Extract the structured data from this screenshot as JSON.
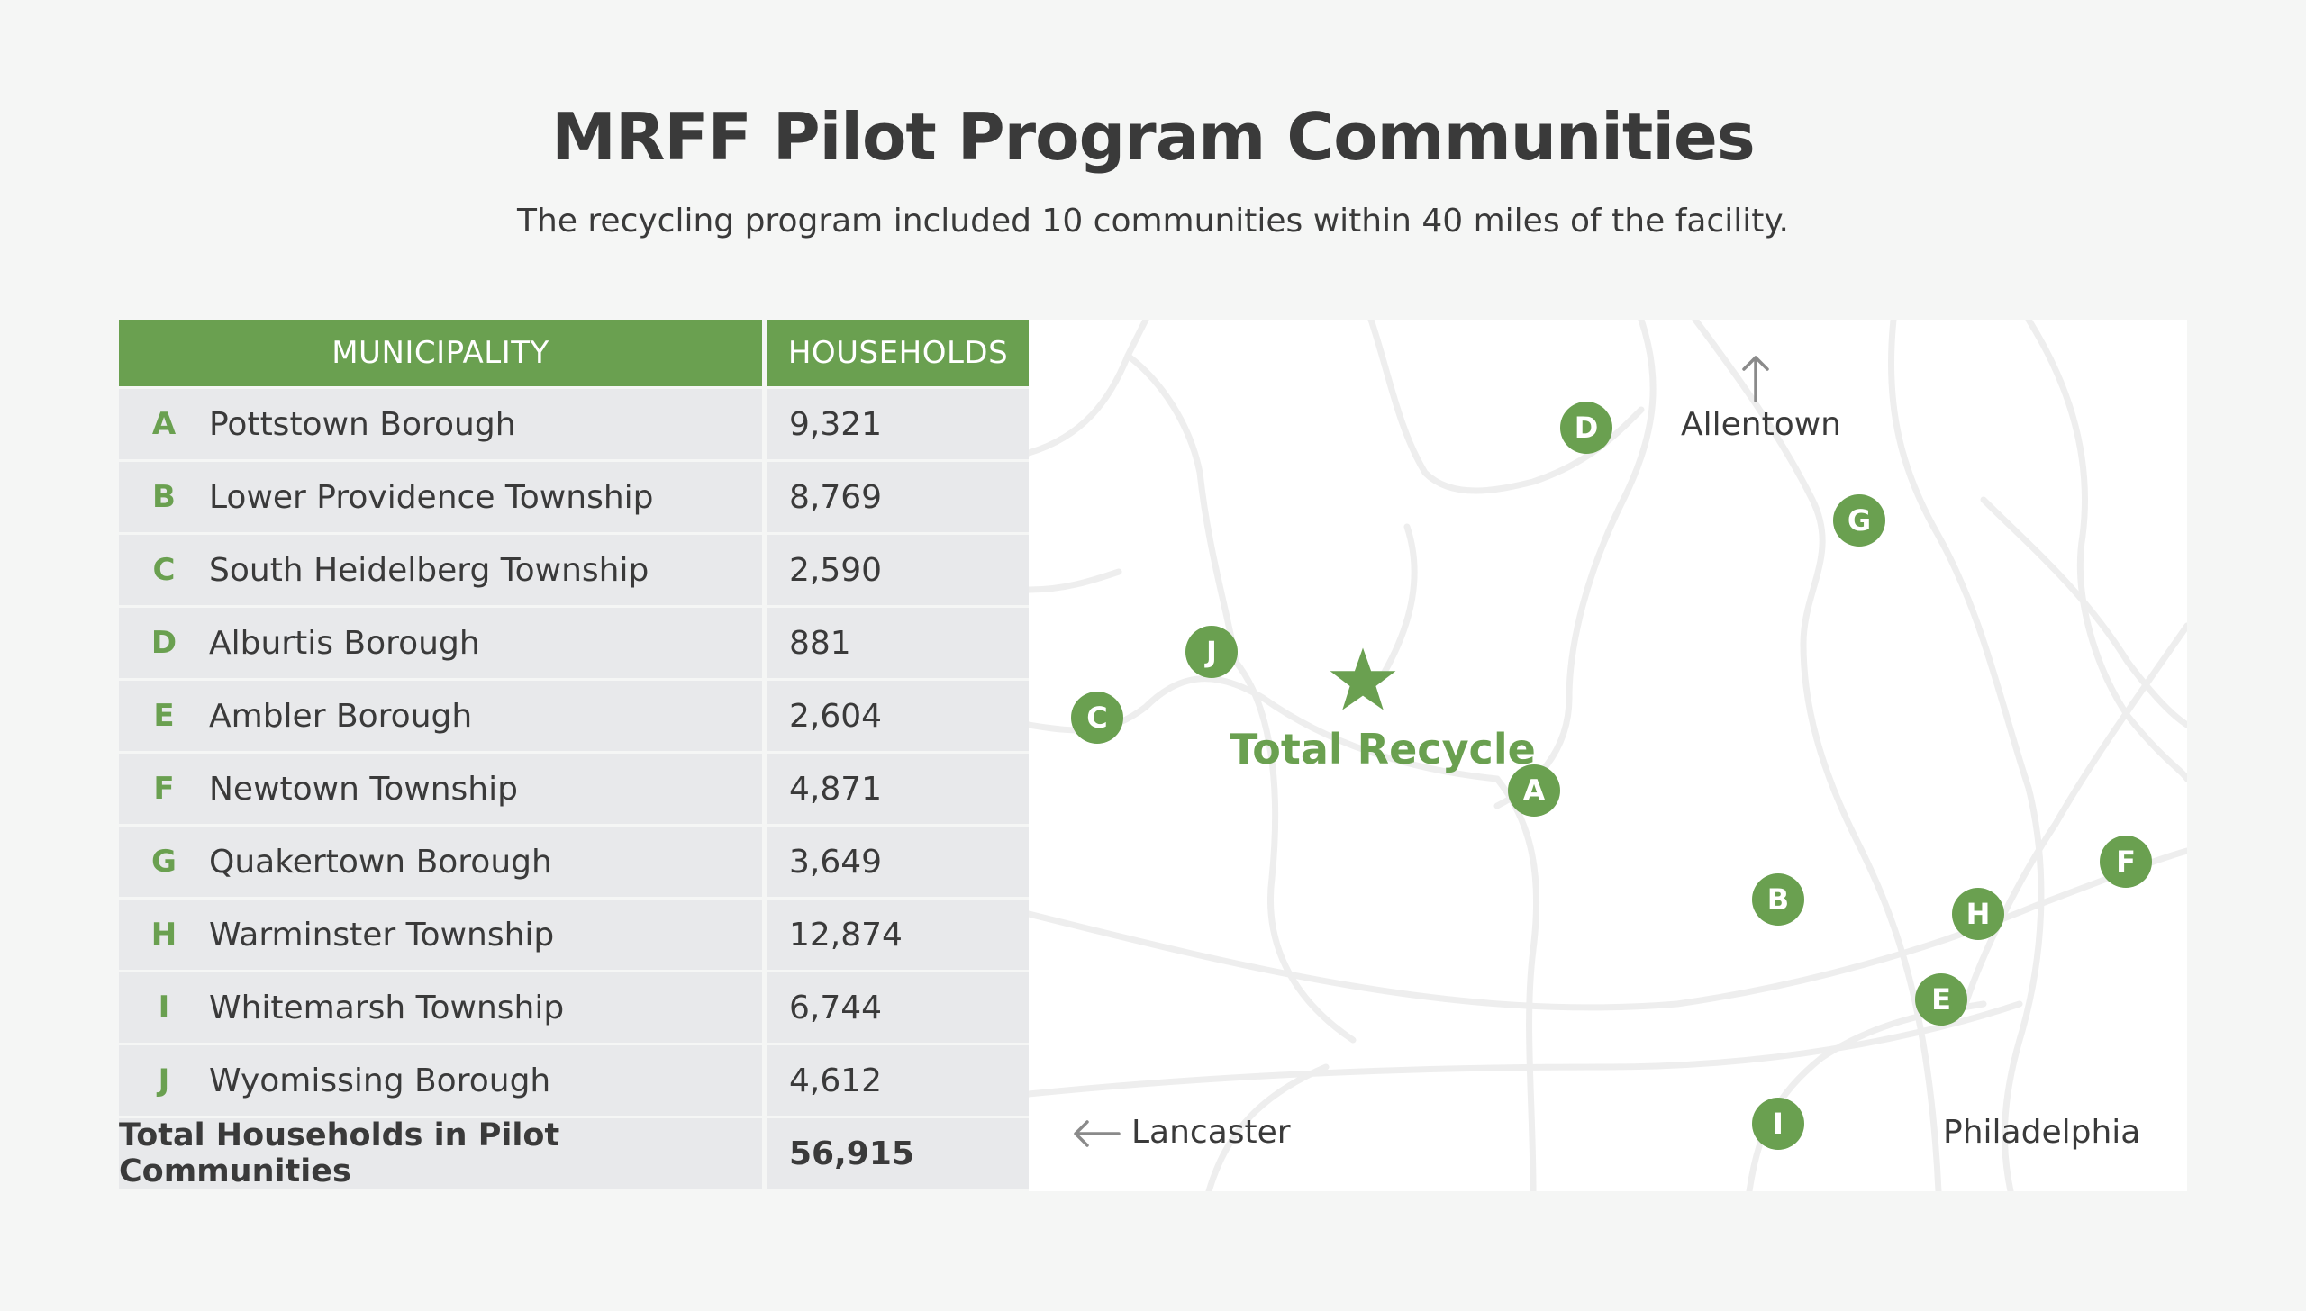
{
  "title": "MRFF Pilot Program Communities",
  "subtitle": "The recycling program included 10 communities within 40 miles of the facility.",
  "colors": {
    "accent_green": "#6aa050",
    "table_cell": "#e8e9eb",
    "background": "#f5f6f5",
    "map_background": "#ffffff",
    "road": "#ececec"
  },
  "table": {
    "headers": {
      "municipality": "MUNICIPALITY",
      "households": "HOUSEHOLDS"
    },
    "rows": [
      {
        "letter": "A",
        "name": "Pottstown Borough",
        "households": "9,321"
      },
      {
        "letter": "B",
        "name": "Lower Providence Township",
        "households": "8,769"
      },
      {
        "letter": "C",
        "name": "South Heidelberg Township",
        "households": "2,590"
      },
      {
        "letter": "D",
        "name": "Alburtis Borough",
        "households": "881"
      },
      {
        "letter": "E",
        "name": "Ambler Borough",
        "households": "2,604"
      },
      {
        "letter": "F",
        "name": "Newtown Township",
        "households": "4,871"
      },
      {
        "letter": "G",
        "name": "Quakertown Borough",
        "households": "3,649"
      },
      {
        "letter": "H",
        "name": "Warminster Township",
        "households": "12,874"
      },
      {
        "letter": "I",
        "name": "Whitemarsh Township",
        "households": "6,744"
      },
      {
        "letter": "J",
        "name": "Wyomissing Borough",
        "households": "4,612"
      }
    ],
    "total": {
      "label": "Total Households in Pilot Communities",
      "value": "56,915"
    }
  },
  "map": {
    "facility": {
      "label": "Total Recycle",
      "icon": "star-icon"
    },
    "pins": [
      "D",
      "G",
      "J",
      "C",
      "A",
      "F",
      "B",
      "H",
      "E",
      "I"
    ],
    "cities": {
      "allentown": {
        "label": "Allentown",
        "icon": "arrow-up-icon"
      },
      "lancaster": {
        "label": "Lancaster",
        "icon": "arrow-left-icon"
      },
      "philadelphia": {
        "label": "Philadelphia"
      }
    }
  }
}
